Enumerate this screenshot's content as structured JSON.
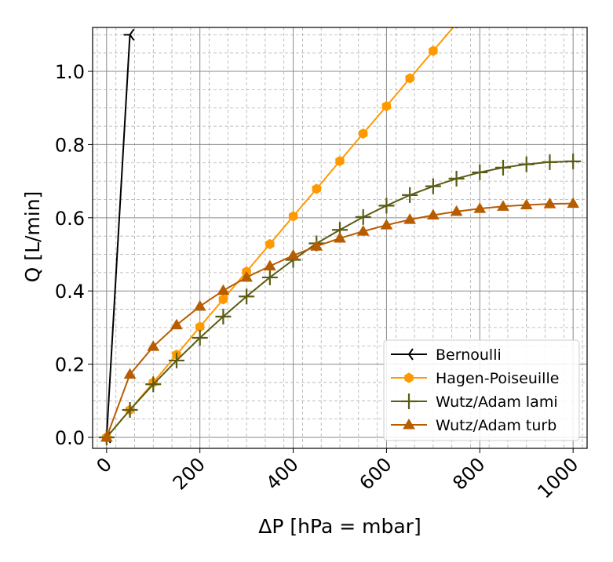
{
  "chart_data": {
    "type": "line",
    "title": "",
    "xlabel": "ΔP [hPa = mbar]",
    "ylabel": "Q [L/min]",
    "xlim": [
      -30,
      1030
    ],
    "ylim": [
      -0.03,
      1.12
    ],
    "xticks": [
      0,
      200,
      400,
      600,
      800,
      1000
    ],
    "xtick_labels": [
      "0",
      "200",
      "400",
      "600",
      "800",
      "1000"
    ],
    "yticks": [
      0.0,
      0.2,
      0.4,
      0.6,
      0.8,
      1.0
    ],
    "ytick_labels": [
      "0.0",
      "0.2",
      "0.4",
      "0.6",
      "0.8",
      "1.0"
    ],
    "grid": true,
    "minor_grid": true,
    "legend_position": "lower-right",
    "series": [
      {
        "name": "Bernoulli",
        "color": "#000000",
        "marker": "tri-left",
        "x": [
          0,
          50
        ],
        "y": [
          0.0,
          1.1
        ]
      },
      {
        "name": "Hagen-Poiseuille",
        "color": "#ff9900",
        "marker": "hexagon",
        "x": [
          0,
          50,
          100,
          150,
          200,
          250,
          300,
          350,
          400,
          450,
          500,
          550,
          600,
          650,
          700,
          750
        ],
        "y": [
          0.0,
          0.075,
          0.15,
          0.226,
          0.302,
          0.377,
          0.453,
          0.528,
          0.604,
          0.679,
          0.755,
          0.83,
          0.905,
          0.981,
          1.056,
          1.131
        ]
      },
      {
        "name": "Wutz/Adam lami",
        "color": "#5b5b14",
        "marker": "plus",
        "x": [
          0,
          50,
          100,
          150,
          200,
          250,
          300,
          350,
          400,
          450,
          500,
          550,
          600,
          650,
          700,
          750,
          800,
          850,
          900,
          950,
          1000
        ],
        "y": [
          0.0,
          0.075,
          0.145,
          0.21,
          0.272,
          0.33,
          0.385,
          0.437,
          0.485,
          0.53,
          0.567,
          0.602,
          0.633,
          0.662,
          0.686,
          0.707,
          0.724,
          0.737,
          0.746,
          0.752,
          0.754
        ]
      },
      {
        "name": "Wutz/Adam turb",
        "color": "#b85c00",
        "marker": "triangle-up",
        "x": [
          0,
          50,
          100,
          150,
          200,
          250,
          300,
          350,
          400,
          450,
          500,
          550,
          600,
          650,
          700,
          750,
          800,
          850,
          900,
          950,
          1000
        ],
        "y": [
          0.0,
          0.172,
          0.248,
          0.307,
          0.358,
          0.401,
          0.437,
          0.468,
          0.497,
          0.522,
          0.544,
          0.563,
          0.58,
          0.595,
          0.607,
          0.617,
          0.625,
          0.631,
          0.635,
          0.638,
          0.639
        ]
      }
    ]
  }
}
